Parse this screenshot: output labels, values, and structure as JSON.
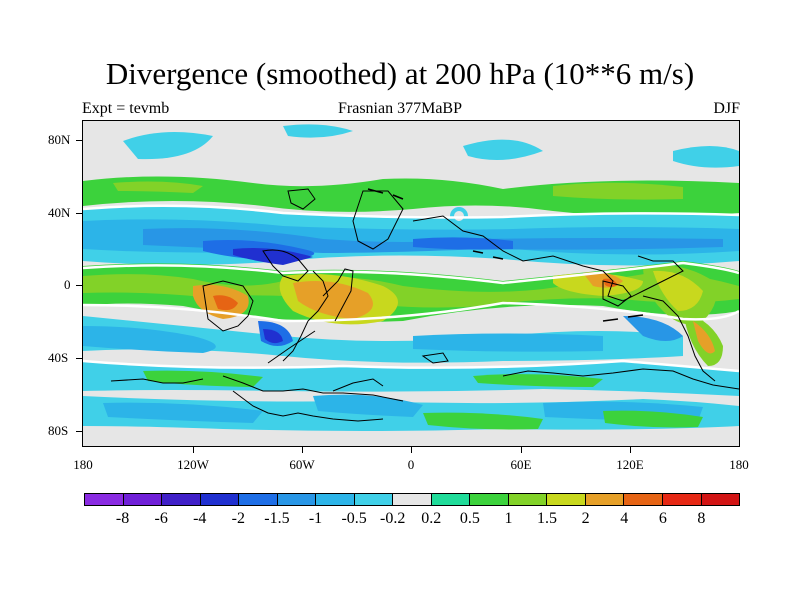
{
  "title": "Divergence (smoothed) at 200 hPa (10**6 m/s)",
  "subtitle_left": "Expt = tevmb",
  "subtitle_center": "Frasnian 377MaBP",
  "subtitle_right": "DJF",
  "chart_data": {
    "type": "heatmap",
    "projection": "cylindrical-equidistant",
    "variable": "Divergence (smoothed) at 200 hPa",
    "units": "10**6 m/s",
    "lon_range": [
      -180,
      180
    ],
    "lat_range": [
      -90,
      90
    ],
    "y_tick_labels": [
      "80N",
      "40N",
      "0",
      "40S",
      "80S"
    ],
    "y_tick_values": [
      80,
      40,
      0,
      -40,
      -80
    ],
    "x_tick_labels": [
      "180",
      "120W",
      "60W",
      "0",
      "60E",
      "120E",
      "180"
    ],
    "x_tick_values": [
      -180,
      -120,
      -60,
      0,
      60,
      120,
      180
    ],
    "colorbar": {
      "labels": [
        "-8",
        "-6",
        "-4",
        "-2",
        "-1.5",
        "-1",
        "-0.5",
        "-0.2",
        "0.2",
        "0.5",
        "1",
        "1.5",
        "2",
        "4",
        "6",
        "8"
      ],
      "colors": [
        "#8a2be2",
        "#7020d8",
        "#4020c8",
        "#2030d0",
        "#1e6ee6",
        "#2896e6",
        "#2cb4e8",
        "#40d0e8",
        "#e6e6e6",
        "#20dc9a",
        "#3cd23c",
        "#82d228",
        "#c8d81e",
        "#e6a028",
        "#e66414",
        "#e62814",
        "#d21414"
      ]
    },
    "zero_contour_color": "#ffffff",
    "coastline_color": "#000000"
  }
}
